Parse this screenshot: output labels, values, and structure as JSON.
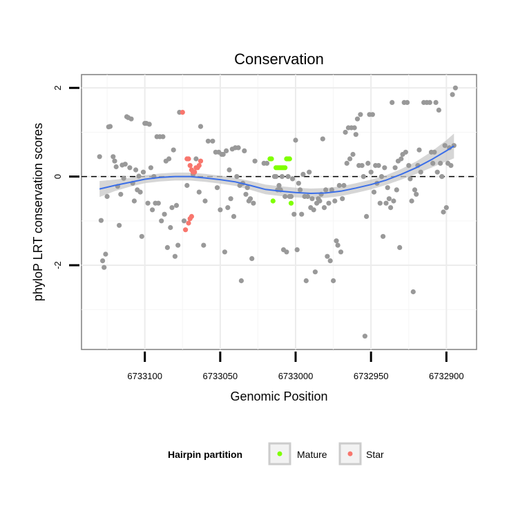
{
  "chart_data": {
    "type": "scatter",
    "title": "Conservation",
    "xlabel": "Genomic Position",
    "ylabel": "phyloP LRT conservation scores",
    "x_reversed": true,
    "xlim": [
      6733142,
      6732880
    ],
    "ylim": [
      -3.9,
      2.3
    ],
    "x_ticks": [
      6733100,
      6733050,
      6733000,
      6732950,
      6732900
    ],
    "x_tick_labels": [
      "6733100",
      "6733050",
      "6733000",
      "6732950",
      "6732900"
    ],
    "y_ticks": [
      -2,
      0,
      2
    ],
    "y_tick_labels": [
      "-2",
      "0",
      "2"
    ],
    "grid": true,
    "reference_line": {
      "y": 0,
      "style": "dashed"
    },
    "legend": {
      "title": "Hairpin partition",
      "placement": "bottom",
      "entries": [
        {
          "label": "Mature",
          "color": "#7fff00"
        },
        {
          "label": "Star",
          "color": "#f8766d"
        }
      ]
    },
    "colors": {
      "other": "#999999",
      "Mature": "#7fff00",
      "Star": "#f8766d",
      "smooth": "#3a6ee8",
      "ribbon": "#c8c8c8"
    },
    "series": [
      {
        "name": "",
        "color": "#999999",
        "points": [
          [
            6733130,
            0.45
          ],
          [
            6733129,
            -0.99
          ],
          [
            6733128,
            -1.9
          ],
          [
            6733127,
            -2.05
          ],
          [
            6733126,
            -1.75
          ],
          [
            6733125,
            -0.45
          ],
          [
            6733124,
            1.12
          ],
          [
            6733123,
            1.13
          ],
          [
            6733121,
            0.45
          ],
          [
            6733120,
            0.35
          ],
          [
            6733119,
            0.22
          ],
          [
            6733118,
            -0.22
          ],
          [
            6733117,
            -1.1
          ],
          [
            6733116,
            -0.4
          ],
          [
            6733115,
            0.26
          ],
          [
            6733114,
            -0.04
          ],
          [
            6733113,
            0.28
          ],
          [
            6733112,
            1.35
          ],
          [
            6733111,
            1.33
          ],
          [
            6733110,
            0.2
          ],
          [
            6733109,
            1.3
          ],
          [
            6733108,
            -0.15
          ],
          [
            6733107,
            -0.55
          ],
          [
            6733106,
            0.15
          ],
          [
            6733105,
            -0.3
          ],
          [
            6733104,
            0.01
          ],
          [
            6733103,
            -0.35
          ],
          [
            6733102,
            -1.35
          ],
          [
            6733101,
            0.1
          ],
          [
            6733100,
            1.2
          ],
          [
            6733099,
            1.2
          ],
          [
            6733098,
            -0.6
          ],
          [
            6733097,
            1.18
          ],
          [
            6733096,
            0.2
          ],
          [
            6733095,
            -0.75
          ],
          [
            6733094,
            0.0
          ],
          [
            6733093,
            -0.6
          ],
          [
            6733092,
            0.9
          ],
          [
            6733091,
            -0.6
          ],
          [
            6733090,
            0.9
          ],
          [
            6733089,
            -1.0
          ],
          [
            6733088,
            0.9
          ],
          [
            6733087,
            -0.85
          ],
          [
            6733086,
            0.35
          ],
          [
            6733085,
            -1.6
          ],
          [
            6733084,
            0.4
          ],
          [
            6733083,
            -1.15
          ],
          [
            6733082,
            -0.7
          ],
          [
            6733081,
            0.6
          ],
          [
            6733080,
            -1.8
          ],
          [
            6733079,
            -0.65
          ],
          [
            6733078,
            -1.55
          ],
          [
            6733077,
            1.45
          ],
          [
            6733074,
            -1.0
          ],
          [
            6733072,
            -0.2
          ],
          [
            6733068,
            0.05
          ],
          [
            6733066,
            0.4
          ],
          [
            6733064,
            -0.35
          ],
          [
            6733063,
            1.13
          ],
          [
            6733061,
            -1.55
          ],
          [
            6733060,
            -0.55
          ],
          [
            6733058,
            0.8
          ],
          [
            6733055,
            0.8
          ],
          [
            6733053,
            0.55
          ],
          [
            6733052,
            -0.25
          ],
          [
            6733051,
            0.55
          ],
          [
            6733050,
            -0.75
          ],
          [
            6733049,
            0.5
          ],
          [
            6733048,
            0.5
          ],
          [
            6733047,
            -1.7
          ],
          [
            6733046,
            0.58
          ],
          [
            6733045,
            -0.7
          ],
          [
            6733044,
            0.15
          ],
          [
            6733043,
            -0.5
          ],
          [
            6733042,
            0.62
          ],
          [
            6733041,
            -0.9
          ],
          [
            6733040,
            0.65
          ],
          [
            6733039,
            0.0
          ],
          [
            6733038,
            0.65
          ],
          [
            6733037,
            -0.2
          ],
          [
            6733036,
            -2.35
          ],
          [
            6733035,
            -0.15
          ],
          [
            6733034,
            0.58
          ],
          [
            6733033,
            -0.4
          ],
          [
            6733032,
            -0.25
          ],
          [
            6733031,
            -0.55
          ],
          [
            6733030,
            -0.5
          ],
          [
            6733029,
            -1.85
          ],
          [
            6733028,
            -0.6
          ],
          [
            6733027,
            0.35
          ],
          [
            6733021,
            0.3
          ],
          [
            6733019,
            0.3
          ],
          [
            6733014,
            0.0
          ],
          [
            6733013,
            0.0
          ],
          [
            6733012,
            -0.3
          ],
          [
            6733011,
            -0.2
          ],
          [
            6733010,
            -0.3
          ],
          [
            6733009,
            0.0
          ],
          [
            6733008,
            -1.65
          ],
          [
            6733007,
            -0.45
          ],
          [
            6733006,
            -1.7
          ],
          [
            6733005,
            0.0
          ],
          [
            6733004,
            -0.45
          ],
          [
            6733003,
            -0.45
          ],
          [
            6733002,
            -0.05
          ],
          [
            6733001,
            -0.85
          ],
          [
            6733000,
            0.82
          ],
          [
            6732999,
            -1.65
          ],
          [
            6732998,
            -0.15
          ],
          [
            6732997,
            -0.3
          ],
          [
            6732996,
            -0.85
          ],
          [
            6732995,
            0.05
          ],
          [
            6732994,
            -0.45
          ],
          [
            6732993,
            -2.35
          ],
          [
            6732992,
            -0.45
          ],
          [
            6732991,
            0.1
          ],
          [
            6732990,
            -0.7
          ],
          [
            6732989,
            -0.5
          ],
          [
            6732988,
            -0.75
          ],
          [
            6732987,
            -2.15
          ],
          [
            6732986,
            -0.6
          ],
          [
            6732985,
            -0.5
          ],
          [
            6732984,
            -0.55
          ],
          [
            6732983,
            -0.4
          ],
          [
            6732982,
            0.85
          ],
          [
            6732981,
            -0.7
          ],
          [
            6732980,
            -0.3
          ],
          [
            6732979,
            -1.8
          ],
          [
            6732978,
            -0.6
          ],
          [
            6732977,
            -1.9
          ],
          [
            6732976,
            -0.3
          ],
          [
            6732975,
            -2.35
          ],
          [
            6732974,
            -0.55
          ],
          [
            6732973,
            -1.45
          ],
          [
            6732972,
            -1.55
          ],
          [
            6732971,
            -0.2
          ],
          [
            6732970,
            -1.7
          ],
          [
            6732969,
            -0.5
          ],
          [
            6732968,
            -0.2
          ],
          [
            6732967,
            1.0
          ],
          [
            6732966,
            0.3
          ],
          [
            6732965,
            1.1
          ],
          [
            6732964,
            0.4
          ],
          [
            6732963,
            1.1
          ],
          [
            6732962,
            0.5
          ],
          [
            6732961,
            1.1
          ],
          [
            6732960,
            0.95
          ],
          [
            6732959,
            1.3
          ],
          [
            6732958,
            0.25
          ],
          [
            6732957,
            1.4
          ],
          [
            6732956,
            0.25
          ],
          [
            6732955,
            0.0
          ],
          [
            6732954,
            -3.6
          ],
          [
            6732953,
            -0.9
          ],
          [
            6732952,
            0.3
          ],
          [
            6732951,
            1.4
          ],
          [
            6732950,
            0.1
          ],
          [
            6732949,
            1.4
          ],
          [
            6732948,
            -0.35
          ],
          [
            6732947,
            0.25
          ],
          [
            6732946,
            -0.15
          ],
          [
            6732945,
            0.25
          ],
          [
            6732944,
            -0.6
          ],
          [
            6732943,
            0.0
          ],
          [
            6732942,
            -1.35
          ],
          [
            6732941,
            0.2
          ],
          [
            6732940,
            -0.6
          ],
          [
            6732939,
            -0.25
          ],
          [
            6732938,
            -0.5
          ],
          [
            6732937,
            -0.7
          ],
          [
            6732936,
            1.67
          ],
          [
            6732935,
            -0.55
          ],
          [
            6732934,
            0.2
          ],
          [
            6732933,
            -0.3
          ],
          [
            6732932,
            0.35
          ],
          [
            6732931,
            -1.6
          ],
          [
            6732930,
            0.4
          ],
          [
            6732929,
            0.5
          ],
          [
            6732928,
            1.67
          ],
          [
            6732927,
            0.55
          ],
          [
            6732926,
            1.67
          ],
          [
            6732925,
            0.25
          ],
          [
            6732924,
            -0.05
          ],
          [
            6732923,
            -0.55
          ],
          [
            6732922,
            -2.6
          ],
          [
            6732921,
            -0.3
          ],
          [
            6732920,
            -0.4
          ],
          [
            6732919,
            0.25
          ],
          [
            6732918,
            0.6
          ],
          [
            6732917,
            0.1
          ],
          [
            6732915,
            1.67
          ],
          [
            6732913,
            1.67
          ],
          [
            6732911,
            1.67
          ],
          [
            6732910,
            0.55
          ],
          [
            6732909,
            0.3
          ],
          [
            6732908,
            0.55
          ],
          [
            6732907,
            1.67
          ],
          [
            6732906,
            0.1
          ],
          [
            6732905,
            1.5
          ],
          [
            6732904,
            0.3
          ],
          [
            6732903,
            0.0
          ],
          [
            6732902,
            -0.8
          ],
          [
            6732901,
            0.7
          ],
          [
            6732900,
            -0.7
          ],
          [
            6732899,
            0.3
          ],
          [
            6732898,
            0.65
          ],
          [
            6732897,
            0.25
          ],
          [
            6732896,
            1.85
          ],
          [
            6732895,
            0.7
          ],
          [
            6732894,
            2.0
          ]
        ]
      },
      {
        "name": "Mature",
        "color": "#7fff00",
        "points": [
          [
            6733017,
            0.4
          ],
          [
            6733016,
            0.4
          ],
          [
            6733015,
            -0.55
          ],
          [
            6733013,
            0.2
          ],
          [
            6733012,
            0.2
          ],
          [
            6733011,
            0.2
          ],
          [
            6733010,
            0.2
          ],
          [
            6733009,
            0.2
          ],
          [
            6733008,
            0.2
          ],
          [
            6733007,
            0.2
          ],
          [
            6733006,
            0.4
          ],
          [
            6733005,
            0.4
          ],
          [
            6733004,
            0.4
          ],
          [
            6733003,
            -0.6
          ]
        ]
      },
      {
        "name": "Star",
        "color": "#f8766d",
        "points": [
          [
            6733075,
            1.45
          ],
          [
            6733072,
            0.4
          ],
          [
            6733071,
            0.4
          ],
          [
            6733070,
            0.25
          ],
          [
            6733069,
            0.15
          ],
          [
            6733068,
            0.1
          ],
          [
            6733067,
            0.1
          ],
          [
            6733066,
            0.2
          ],
          [
            6733065,
            0.2
          ],
          [
            6733064,
            0.25
          ],
          [
            6733063,
            0.35
          ],
          [
            6733073,
            -1.2
          ],
          [
            6733070,
            -0.95
          ],
          [
            6733069,
            -0.9
          ],
          [
            6733071,
            -1.05
          ]
        ]
      }
    ],
    "smooth_line": {
      "x": [
        6733130,
        6733120,
        6733110,
        6733100,
        6733090,
        6733080,
        6733070,
        6733060,
        6733050,
        6733040,
        6733030,
        6733020,
        6733010,
        6733000,
        6732990,
        6732980,
        6732970,
        6732960,
        6732950,
        6732940,
        6732930,
        6732920,
        6732910,
        6732900,
        6732895
      ],
      "y": [
        -0.28,
        -0.2,
        -0.13,
        -0.06,
        -0.02,
        0.0,
        0.0,
        -0.03,
        -0.07,
        -0.12,
        -0.2,
        -0.29,
        -0.33,
        -0.36,
        -0.38,
        -0.37,
        -0.33,
        -0.26,
        -0.18,
        -0.08,
        0.05,
        0.2,
        0.38,
        0.58,
        0.69
      ],
      "ci_halfwidth": [
        0.18,
        0.13,
        0.1,
        0.09,
        0.09,
        0.09,
        0.09,
        0.09,
        0.09,
        0.09,
        0.1,
        0.11,
        0.11,
        0.11,
        0.11,
        0.11,
        0.11,
        0.11,
        0.11,
        0.11,
        0.12,
        0.14,
        0.18,
        0.24,
        0.28
      ]
    }
  }
}
